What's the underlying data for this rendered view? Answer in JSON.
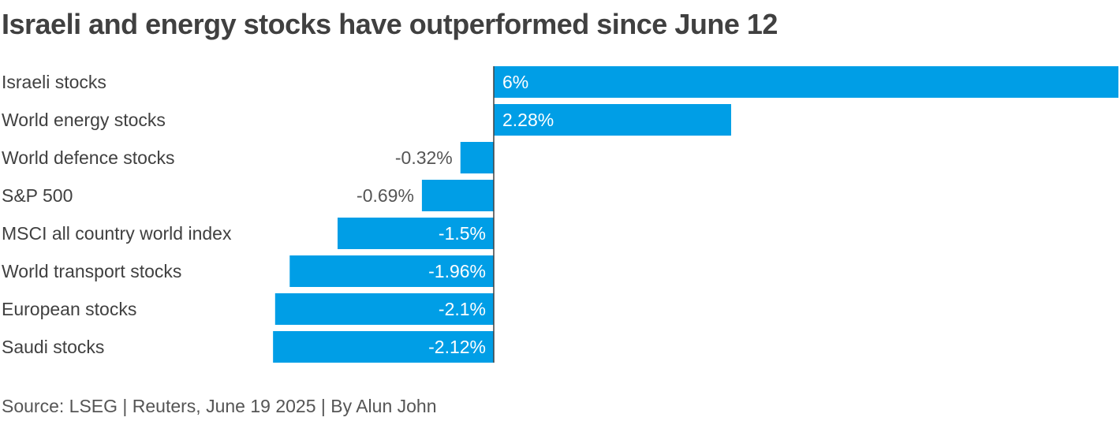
{
  "title": "Israeli and energy stocks have outperformed since June 12",
  "source": "Source: LSEG | Reuters, June 19 2025 | By Alun John",
  "colors": {
    "bar": "#009ee6",
    "text": "#404040",
    "axis": "#404040",
    "label_inside": "#ffffff",
    "label_outside": "#555555"
  },
  "chart_data": {
    "type": "bar",
    "orientation": "horizontal",
    "title": "Israeli and energy stocks have outperformed since June 12",
    "categories": [
      "Israeli stocks",
      "World energy stocks",
      "World defence stocks",
      "S&P 500",
      "MSCI all country world index",
      "World transport stocks",
      "European stocks",
      "Saudi stocks"
    ],
    "values": [
      6,
      2.28,
      -0.32,
      -0.69,
      -1.5,
      -1.96,
      -2.1,
      -2.12
    ],
    "value_labels": [
      "6%",
      "2.28%",
      "-0.32%",
      "-0.69%",
      "-1.5%",
      "-1.96%",
      "-2.1%",
      "-2.12%"
    ],
    "unit": "%",
    "xlim": [
      -2.12,
      6
    ],
    "grid": false,
    "legend": "none"
  }
}
